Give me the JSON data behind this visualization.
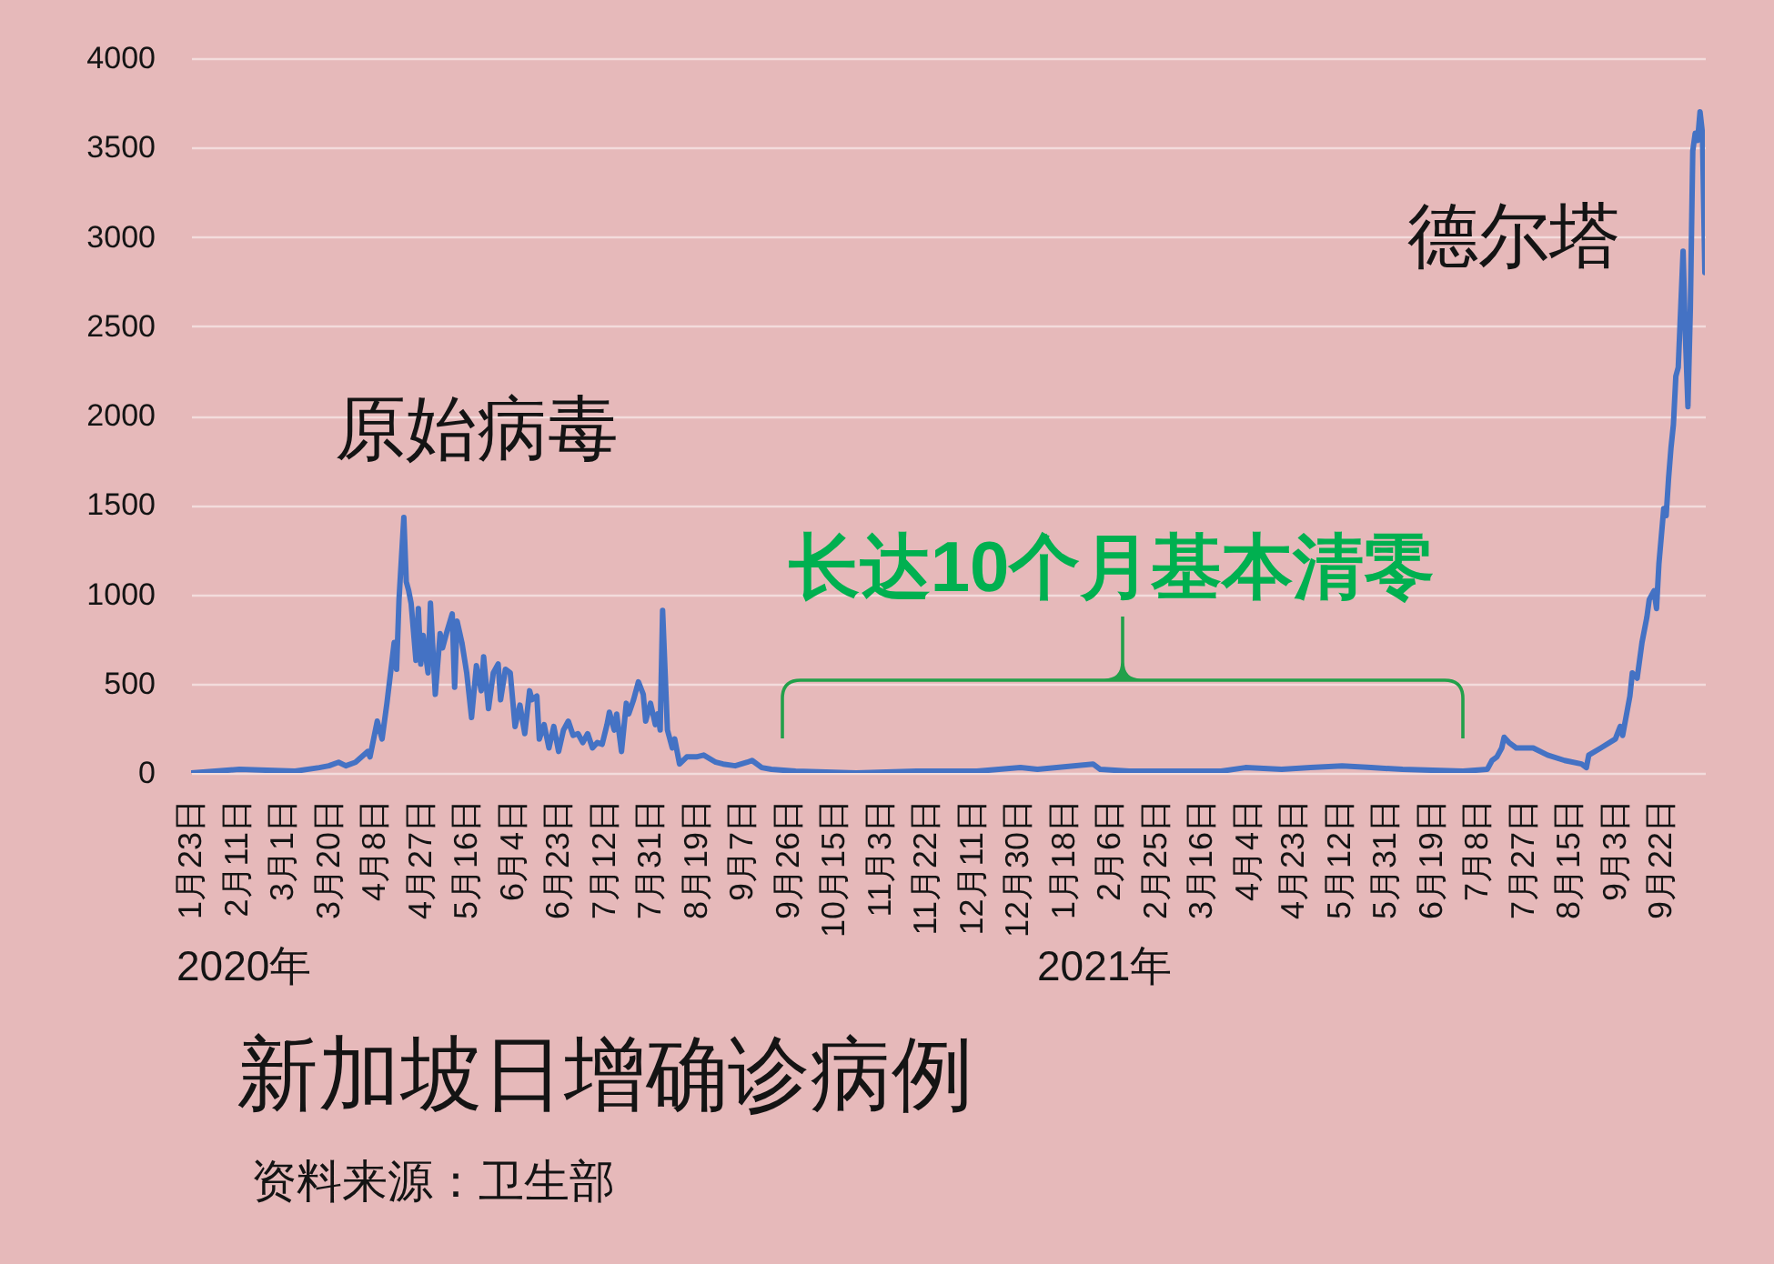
{
  "chart_data": {
    "type": "line",
    "title": "新加坡日增确诊病例",
    "x": [
      "2020-01-23",
      "2020-02-12",
      "2020-03-06",
      "2020-03-16",
      "2020-03-20",
      "2020-03-24",
      "2020-03-27",
      "2020-03-31",
      "2020-04-05",
      "2020-04-06",
      "2020-04-09",
      "2020-04-11",
      "2020-04-13",
      "2020-04-16",
      "2020-04-17",
      "2020-04-18",
      "2020-04-20",
      "2020-04-21",
      "2020-04-22",
      "2020-04-23",
      "2020-04-25",
      "2020-04-26",
      "2020-04-27",
      "2020-04-28",
      "2020-04-30",
      "2020-05-01",
      "2020-05-03",
      "2020-05-05",
      "2020-05-06",
      "2020-05-08",
      "2020-05-10",
      "2020-05-11",
      "2020-05-12",
      "2020-05-14",
      "2020-05-16",
      "2020-05-18",
      "2020-05-20",
      "2020-05-22",
      "2020-05-23",
      "2020-05-25",
      "2020-05-27",
      "2020-05-29",
      "2020-05-30",
      "2020-06-01",
      "2020-06-03",
      "2020-06-05",
      "2020-06-07",
      "2020-06-09",
      "2020-06-11",
      "2020-06-12",
      "2020-06-14",
      "2020-06-15",
      "2020-06-17",
      "2020-06-19",
      "2020-06-21",
      "2020-06-23",
      "2020-06-25",
      "2020-06-27",
      "2020-06-29",
      "2020-07-01",
      "2020-07-03",
      "2020-07-05",
      "2020-07-07",
      "2020-07-09",
      "2020-07-11",
      "2020-07-13",
      "2020-07-14",
      "2020-07-16",
      "2020-07-17",
      "2020-07-19",
      "2020-07-21",
      "2020-07-22",
      "2020-07-24",
      "2020-07-26",
      "2020-07-28",
      "2020-07-29",
      "2020-07-31",
      "2020-08-02",
      "2020-08-03",
      "2020-08-04",
      "2020-08-05",
      "2020-08-07",
      "2020-08-09",
      "2020-08-10",
      "2020-08-12",
      "2020-08-15",
      "2020-08-19",
      "2020-08-22",
      "2020-08-27",
      "2020-08-30",
      "2020-09-04",
      "2020-09-09",
      "2020-09-11",
      "2020-09-15",
      "2020-09-19",
      "2020-09-29",
      "2020-10-24",
      "2020-11-18",
      "2020-12-13",
      "2020-12-31",
      "2021-01-07",
      "2021-01-22",
      "2021-01-30",
      "2021-02-02",
      "2021-02-14",
      "2021-03-24",
      "2021-04-03",
      "2021-04-18",
      "2021-04-30",
      "2021-05-13",
      "2021-05-25",
      "2021-06-07",
      "2021-07-02",
      "2021-07-12",
      "2021-07-14",
      "2021-07-16",
      "2021-07-18",
      "2021-07-19",
      "2021-07-21",
      "2021-07-24",
      "2021-07-31",
      "2021-08-06",
      "2021-08-13",
      "2021-08-20",
      "2021-08-22",
      "2021-08-23",
      "2021-08-28",
      "2021-09-03",
      "2021-09-05",
      "2021-09-06",
      "2021-09-09",
      "2021-09-10",
      "2021-09-12",
      "2021-09-14",
      "2021-09-16",
      "2021-09-17",
      "2021-09-19",
      "2021-09-20",
      "2021-09-21",
      "2021-09-23",
      "2021-09-24",
      "2021-09-25",
      "2021-09-26",
      "2021-09-27",
      "2021-09-28",
      "2021-09-29",
      "2021-10-01",
      "2021-10-02",
      "2021-10-03",
      "2021-10-04",
      "2021-10-05",
      "2021-10-06",
      "2021-10-07",
      "2021-10-08",
      "2021-10-09",
      "2021-10-10"
    ],
    "series": [
      {
        "color": "#4472c4",
        "values": [
          0,
          20,
          10,
          30,
          40,
          60,
          40,
          60,
          120,
          90,
          290,
          190,
          390,
          730,
          580,
          970,
          1430,
          1070,
          1020,
          950,
          630,
          920,
          610,
          770,
          560,
          950,
          440,
          780,
          700,
          800,
          890,
          480,
          850,
          730,
          560,
          310,
          600,
          460,
          650,
          360,
          560,
          610,
          410,
          580,
          560,
          260,
          380,
          220,
          460,
          410,
          430,
          190,
          270,
          140,
          260,
          120,
          240,
          290,
          210,
          220,
          170,
          220,
          140,
          170,
          160,
          270,
          340,
          240,
          330,
          120,
          390,
          330,
          410,
          510,
          440,
          290,
          390,
          270,
          330,
          240,
          910,
          240,
          140,
          190,
          50,
          90,
          90,
          100,
          60,
          50,
          40,
          60,
          70,
          30,
          20,
          10,
          0,
          10,
          10,
          30,
          20,
          40,
          50,
          20,
          10,
          10,
          30,
          20,
          30,
          40,
          30,
          20,
          10,
          20,
          70,
          90,
          140,
          200,
          170,
          140,
          140,
          100,
          70,
          50,
          30,
          100,
          140,
          190,
          260,
          210,
          430,
          560,
          530,
          730,
          870,
          970,
          1020,
          920,
          1170,
          1480,
          1440,
          1650,
          1820,
          1950,
          2220,
          2270,
          2920,
          2430,
          2050,
          2600,
          3480,
          3580,
          3540,
          3700,
          3580,
          2800
        ]
      }
    ],
    "xlim": [
      "2020-01-23",
      "2021-10-10"
    ],
    "xticks": [
      {
        "value": "2020-01-23",
        "label": "1月23日"
      },
      {
        "value": "2020-02-11",
        "label": "2月11日"
      },
      {
        "value": "2020-03-01",
        "label": "3月1日"
      },
      {
        "value": "2020-03-20",
        "label": "3月20日"
      },
      {
        "value": "2020-04-08",
        "label": "4月8日"
      },
      {
        "value": "2020-04-27",
        "label": "4月27日"
      },
      {
        "value": "2020-05-16",
        "label": "5月16日"
      },
      {
        "value": "2020-06-04",
        "label": "6月4日"
      },
      {
        "value": "2020-06-23",
        "label": "6月23日"
      },
      {
        "value": "2020-07-12",
        "label": "7月12日"
      },
      {
        "value": "2020-07-31",
        "label": "7月31日"
      },
      {
        "value": "2020-08-19",
        "label": "8月19日"
      },
      {
        "value": "2020-09-07",
        "label": "9月7日"
      },
      {
        "value": "2020-09-26",
        "label": "9月26日"
      },
      {
        "value": "2020-10-15",
        "label": "10月15日"
      },
      {
        "value": "2020-11-03",
        "label": "11月3日"
      },
      {
        "value": "2020-11-22",
        "label": "11月22日"
      },
      {
        "value": "2020-12-11",
        "label": "12月11日"
      },
      {
        "value": "2020-12-30",
        "label": "12月30日"
      },
      {
        "value": "2021-01-18",
        "label": "1月18日"
      },
      {
        "value": "2021-02-06",
        "label": "2月6日"
      },
      {
        "value": "2021-02-25",
        "label": "2月25日"
      },
      {
        "value": "2021-03-16",
        "label": "3月16日"
      },
      {
        "value": "2021-04-04",
        "label": "4月4日"
      },
      {
        "value": "2021-04-23",
        "label": "4月23日"
      },
      {
        "value": "2021-05-12",
        "label": "5月12日"
      },
      {
        "value": "2021-05-31",
        "label": "5月31日"
      },
      {
        "value": "2021-06-19",
        "label": "6月19日"
      },
      {
        "value": "2021-07-08",
        "label": "7月8日"
      },
      {
        "value": "2021-07-27",
        "label": "7月27日"
      },
      {
        "value": "2021-08-15",
        "label": "8月15日"
      },
      {
        "value": "2021-09-03",
        "label": "9月3日"
      },
      {
        "value": "2021-09-22",
        "label": "9月22日"
      }
    ],
    "ylim": [
      0,
      4000
    ],
    "yticks": [
      0,
      500,
      1000,
      1500,
      2000,
      2500,
      3000,
      3500,
      4000
    ],
    "grid": "y",
    "annotations": [
      "原始病毒",
      "长达10个月基本清零",
      "德尔塔",
      "2020年",
      "2021年",
      "资料来源：卫生部"
    ]
  }
}
